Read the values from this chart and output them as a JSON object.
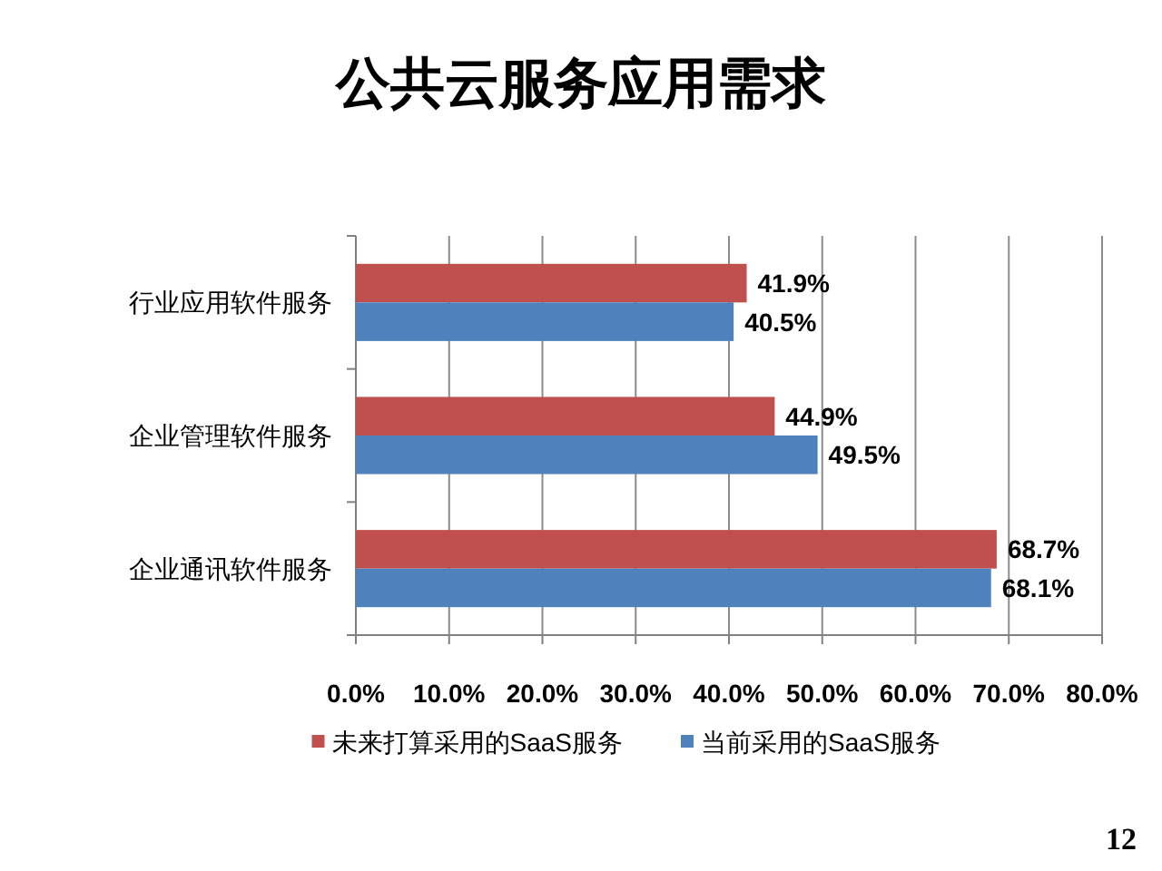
{
  "chart_data": {
    "type": "bar",
    "orientation": "horizontal",
    "title": "公共云服务应用需求",
    "categories": [
      "行业应用软件服务",
      "企业管理软件服务",
      "企业通讯软件服务"
    ],
    "series": [
      {
        "name": "未来打算采用的SaaS服务",
        "color": "#c0504d",
        "values": [
          41.9,
          44.9,
          68.7
        ],
        "value_labels": [
          "41.9%",
          "44.9%",
          "68.7%"
        ]
      },
      {
        "name": "当前采用的SaaS服务",
        "color": "#4f81bd",
        "values": [
          40.5,
          49.5,
          68.1
        ],
        "value_labels": [
          "40.5%",
          "49.5%",
          "68.1%"
        ]
      }
    ],
    "xlim": [
      0,
      80
    ],
    "xticks": [
      {
        "value": 0,
        "label": "0.0%"
      },
      {
        "value": 10,
        "label": "10.0%"
      },
      {
        "value": 20,
        "label": "20.0%"
      },
      {
        "value": 30,
        "label": "30.0%"
      },
      {
        "value": 40,
        "label": "40.0%"
      },
      {
        "value": 50,
        "label": "50.0%"
      },
      {
        "value": 60,
        "label": "60.0%"
      },
      {
        "value": 70,
        "label": "70.0%"
      },
      {
        "value": 80,
        "label": "80.0%"
      }
    ],
    "grid": "x",
    "legend": "bottom",
    "annotations": [
      "12"
    ]
  }
}
